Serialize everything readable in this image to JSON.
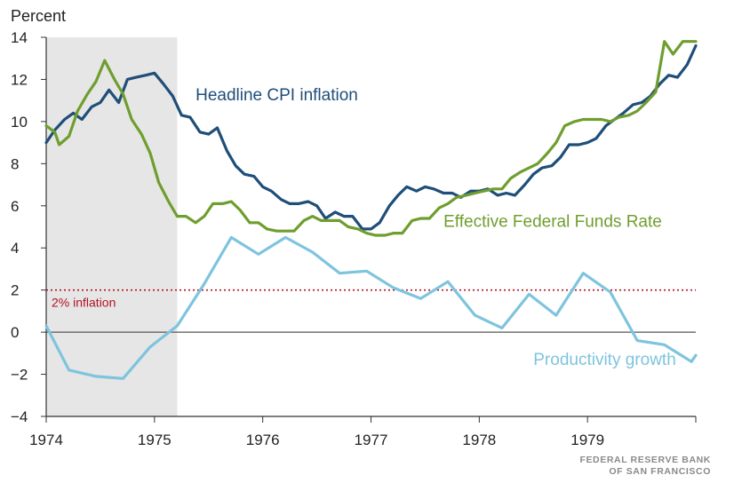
{
  "chart_data": {
    "type": "line",
    "title": "",
    "ylabel": "Percent",
    "xlabel": "",
    "xlim": [
      1974.0,
      1980.0
    ],
    "ylim": [
      -4,
      14
    ],
    "x_ticks": [
      1974,
      1975,
      1976,
      1977,
      1978,
      1979
    ],
    "y_ticks": [
      -4,
      -2,
      0,
      2,
      4,
      6,
      8,
      10,
      12,
      14
    ],
    "x_tick_labels": [
      "1974",
      "1975",
      "1976",
      "1977",
      "1978",
      "1979"
    ],
    "y_tick_labels": [
      "−4",
      "−2",
      "0",
      "2",
      "4",
      "6",
      "8",
      "10",
      "12",
      "14"
    ],
    "recession": {
      "start": 1974.0,
      "end": 1975.21
    },
    "reference_line": {
      "value": 2,
      "label": "2% inflation",
      "color": "#b3121f"
    },
    "series": [
      {
        "name": "Headline CPI inflation",
        "color": "#1f4e79",
        "points": [
          [
            1974.0,
            9.0
          ],
          [
            1974.08,
            9.6
          ],
          [
            1974.17,
            10.1
          ],
          [
            1974.25,
            10.4
          ],
          [
            1974.33,
            10.1
          ],
          [
            1974.42,
            10.7
          ],
          [
            1974.5,
            10.9
          ],
          [
            1974.58,
            11.5
          ],
          [
            1974.67,
            10.9
          ],
          [
            1974.75,
            12.0
          ],
          [
            1974.83,
            12.1
          ],
          [
            1974.92,
            12.2
          ],
          [
            1975.0,
            12.3
          ],
          [
            1975.08,
            11.8
          ],
          [
            1975.17,
            11.2
          ],
          [
            1975.25,
            10.3
          ],
          [
            1975.33,
            10.2
          ],
          [
            1975.42,
            9.5
          ],
          [
            1975.5,
            9.4
          ],
          [
            1975.58,
            9.7
          ],
          [
            1975.67,
            8.6
          ],
          [
            1975.75,
            7.9
          ],
          [
            1975.83,
            7.5
          ],
          [
            1975.92,
            7.4
          ],
          [
            1976.0,
            6.9
          ],
          [
            1976.08,
            6.7
          ],
          [
            1976.17,
            6.3
          ],
          [
            1976.25,
            6.1
          ],
          [
            1976.33,
            6.1
          ],
          [
            1976.42,
            6.2
          ],
          [
            1976.5,
            6.0
          ],
          [
            1976.58,
            5.4
          ],
          [
            1976.67,
            5.7
          ],
          [
            1976.75,
            5.5
          ],
          [
            1976.83,
            5.5
          ],
          [
            1976.92,
            4.9
          ],
          [
            1977.0,
            4.9
          ],
          [
            1977.08,
            5.2
          ],
          [
            1977.17,
            6.0
          ],
          [
            1977.25,
            6.5
          ],
          [
            1977.33,
            6.9
          ],
          [
            1977.42,
            6.7
          ],
          [
            1977.5,
            6.9
          ],
          [
            1977.58,
            6.8
          ],
          [
            1977.67,
            6.6
          ],
          [
            1977.75,
            6.6
          ],
          [
            1977.83,
            6.4
          ],
          [
            1977.92,
            6.7
          ],
          [
            1978.0,
            6.7
          ],
          [
            1978.08,
            6.8
          ],
          [
            1978.17,
            6.5
          ],
          [
            1978.25,
            6.6
          ],
          [
            1978.33,
            6.5
          ],
          [
            1978.42,
            7.0
          ],
          [
            1978.5,
            7.5
          ],
          [
            1978.58,
            7.8
          ],
          [
            1978.67,
            7.9
          ],
          [
            1978.75,
            8.3
          ],
          [
            1978.83,
            8.9
          ],
          [
            1978.92,
            8.9
          ],
          [
            1979.0,
            9.0
          ],
          [
            1979.08,
            9.2
          ],
          [
            1979.17,
            9.8
          ],
          [
            1979.25,
            10.1
          ],
          [
            1979.33,
            10.4
          ],
          [
            1979.42,
            10.8
          ],
          [
            1979.5,
            10.9
          ],
          [
            1979.58,
            11.2
          ],
          [
            1979.67,
            11.8
          ],
          [
            1979.75,
            12.2
          ],
          [
            1979.83,
            12.1
          ],
          [
            1979.92,
            12.7
          ],
          [
            1980.0,
            13.6
          ]
        ]
      },
      {
        "name": "Effective Federal Funds Rate",
        "color": "#6f9e2e",
        "points": [
          [
            1974.0,
            9.8
          ],
          [
            1974.08,
            9.5
          ],
          [
            1974.12,
            8.9
          ],
          [
            1974.21,
            9.3
          ],
          [
            1974.29,
            10.5
          ],
          [
            1974.38,
            11.3
          ],
          [
            1974.46,
            11.9
          ],
          [
            1974.54,
            12.9
          ],
          [
            1974.63,
            12.0
          ],
          [
            1974.71,
            11.3
          ],
          [
            1974.79,
            10.1
          ],
          [
            1974.88,
            9.4
          ],
          [
            1974.96,
            8.5
          ],
          [
            1975.04,
            7.1
          ],
          [
            1975.13,
            6.2
          ],
          [
            1975.21,
            5.5
          ],
          [
            1975.29,
            5.5
          ],
          [
            1975.38,
            5.2
          ],
          [
            1975.46,
            5.5
          ],
          [
            1975.54,
            6.1
          ],
          [
            1975.63,
            6.1
          ],
          [
            1975.71,
            6.2
          ],
          [
            1975.79,
            5.8
          ],
          [
            1975.88,
            5.2
          ],
          [
            1975.96,
            5.2
          ],
          [
            1976.04,
            4.9
          ],
          [
            1976.13,
            4.8
          ],
          [
            1976.21,
            4.8
          ],
          [
            1976.29,
            4.8
          ],
          [
            1976.38,
            5.3
          ],
          [
            1976.46,
            5.5
          ],
          [
            1976.54,
            5.3
          ],
          [
            1976.63,
            5.3
          ],
          [
            1976.71,
            5.3
          ],
          [
            1976.79,
            5.0
          ],
          [
            1976.88,
            4.9
          ],
          [
            1976.96,
            4.7
          ],
          [
            1977.04,
            4.6
          ],
          [
            1977.13,
            4.6
          ],
          [
            1977.21,
            4.7
          ],
          [
            1977.29,
            4.7
          ],
          [
            1977.38,
            5.3
          ],
          [
            1977.46,
            5.4
          ],
          [
            1977.54,
            5.4
          ],
          [
            1977.63,
            5.9
          ],
          [
            1977.71,
            6.1
          ],
          [
            1977.79,
            6.4
          ],
          [
            1977.88,
            6.5
          ],
          [
            1977.96,
            6.6
          ],
          [
            1978.04,
            6.7
          ],
          [
            1978.13,
            6.8
          ],
          [
            1978.21,
            6.8
          ],
          [
            1978.29,
            7.3
          ],
          [
            1978.38,
            7.6
          ],
          [
            1978.46,
            7.8
          ],
          [
            1978.54,
            8.0
          ],
          [
            1978.63,
            8.5
          ],
          [
            1978.71,
            9.0
          ],
          [
            1978.79,
            9.8
          ],
          [
            1978.88,
            10.0
          ],
          [
            1978.96,
            10.1
          ],
          [
            1979.04,
            10.1
          ],
          [
            1979.13,
            10.1
          ],
          [
            1979.21,
            10.0
          ],
          [
            1979.29,
            10.2
          ],
          [
            1979.38,
            10.3
          ],
          [
            1979.46,
            10.5
          ],
          [
            1979.54,
            10.9
          ],
          [
            1979.63,
            11.4
          ],
          [
            1979.71,
            13.8
          ],
          [
            1979.79,
            13.2
          ],
          [
            1979.88,
            13.8
          ],
          [
            1980.0,
            13.8
          ]
        ]
      },
      {
        "name": "Productivity growth",
        "color": "#7ec4de",
        "points": [
          [
            1974.0,
            0.3
          ],
          [
            1974.21,
            -1.8
          ],
          [
            1974.46,
            -2.1
          ],
          [
            1974.71,
            -2.2
          ],
          [
            1974.96,
            -0.7
          ],
          [
            1975.21,
            0.3
          ],
          [
            1975.46,
            2.3
          ],
          [
            1975.71,
            4.5
          ],
          [
            1975.96,
            3.7
          ],
          [
            1976.21,
            4.5
          ],
          [
            1976.46,
            3.8
          ],
          [
            1976.71,
            2.8
          ],
          [
            1976.96,
            2.9
          ],
          [
            1977.21,
            2.1
          ],
          [
            1977.46,
            1.6
          ],
          [
            1977.71,
            2.4
          ],
          [
            1977.96,
            0.8
          ],
          [
            1978.21,
            0.2
          ],
          [
            1978.46,
            1.8
          ],
          [
            1978.71,
            0.8
          ],
          [
            1978.96,
            2.8
          ],
          [
            1979.21,
            1.9
          ],
          [
            1979.46,
            -0.4
          ],
          [
            1979.71,
            -0.6
          ],
          [
            1979.96,
            -1.4
          ],
          [
            1980.0,
            -1.1
          ]
        ]
      }
    ],
    "annotations": [
      {
        "text": "Headline CPI inflation",
        "series": 0,
        "anchor": [
          1975.38,
          11.0
        ]
      },
      {
        "text": "Effective Federal Funds Rate",
        "series": 1,
        "anchor": [
          1977.67,
          5.0
        ]
      },
      {
        "text": "Productivity growth",
        "series": 2,
        "anchor": [
          1978.5,
          -1.55
        ]
      }
    ]
  },
  "source": {
    "line1": "FEDERAL RESERVE BANK",
    "line2": "OF SAN FRANCISCO"
  }
}
